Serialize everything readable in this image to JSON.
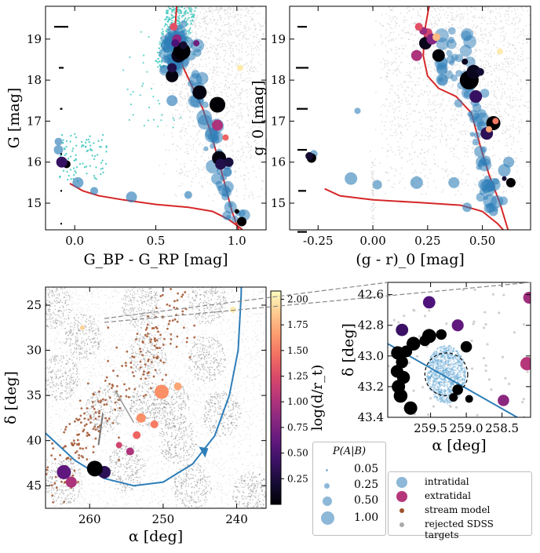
{
  "chart_data": [
    {
      "id": "gaia-cmd",
      "type": "scatter",
      "xlabel": "G_BP - G_RP [mag]",
      "ylabel": "G [mag]",
      "xlim": [
        -0.18,
        1.18
      ],
      "ylim": [
        19.8,
        14.35
      ],
      "xticks": [
        "0.0",
        "0.5",
        "1.0"
      ],
      "xtick_values": [
        0.0,
        0.5,
        1.0
      ],
      "yticks": [
        "15",
        "16",
        "17",
        "18",
        "19"
      ],
      "ytick_values": [
        15,
        16,
        17,
        18,
        19
      ],
      "error_bar_mags": [
        14.5,
        15.3,
        16.2,
        17.3,
        18.3,
        19.3
      ]
    },
    {
      "id": "sdss-cmd",
      "type": "scatter",
      "xlabel": "(g - r)_0 [mag]",
      "ylabel": "g_0 [mag]",
      "xlim": [
        -0.38,
        0.72
      ],
      "ylim": [
        19.8,
        14.35
      ],
      "xticks": [
        "-0.25",
        "0.00",
        "0.25",
        "0.50"
      ],
      "xtick_values": [
        -0.25,
        0.0,
        0.25,
        0.5
      ],
      "yticks": [
        "15",
        "16",
        "17",
        "18",
        "19"
      ],
      "ytick_values": [
        15,
        16,
        17,
        18,
        19
      ],
      "error_bar_mags": [
        14.3,
        15.3,
        16.3,
        17.3,
        18.3,
        19.3
      ]
    },
    {
      "id": "sky-map",
      "type": "scatter",
      "xlabel": "α [deg]",
      "ylabel": "δ [deg]",
      "xlim": [
        266,
        236
      ],
      "ylim": [
        23,
        47.5
      ],
      "xticks": [
        "260",
        "250",
        "240"
      ],
      "xtick_values": [
        260,
        250,
        240
      ],
      "yticks": [
        "25",
        "30",
        "35",
        "40",
        "45"
      ],
      "ytick_values": [
        25,
        30,
        35,
        40,
        45
      ]
    },
    {
      "id": "zoom-map",
      "type": "scatter",
      "xlabel": "α [deg]",
      "ylabel": "δ [deg]",
      "xlim": [
        260.1,
        258.1
      ],
      "ylim": [
        42.52,
        43.4
      ],
      "xticks": [
        "259.5",
        "259.0",
        "258.5"
      ],
      "xtick_values": [
        259.5,
        259.0,
        258.5
      ],
      "yticks": [
        "42.6",
        "42.8",
        "43.0",
        "43.2",
        "43.4"
      ],
      "ytick_values": [
        42.6,
        42.8,
        43.0,
        43.2,
        43.4
      ],
      "cluster_center": [
        259.28,
        43.12
      ],
      "members": [
        [
          259.78,
          43.34,
          0.9
        ],
        [
          259.92,
          43.26,
          0.95
        ],
        [
          259.95,
          43.2,
          0.9
        ],
        [
          259.88,
          43.14,
          0.85
        ],
        [
          259.97,
          43.1,
          0.8
        ],
        [
          259.9,
          43.04,
          0.75
        ],
        [
          259.96,
          42.98,
          0.9
        ],
        [
          259.74,
          42.92,
          0.95
        ],
        [
          259.52,
          42.87,
          1.0
        ],
        [
          259.58,
          42.9,
          0.6
        ],
        [
          259.12,
          43.22,
          0.55
        ],
        [
          259.18,
          43.27,
          0.3
        ],
        [
          259.0,
          42.94,
          0.65
        ],
        [
          259.35,
          42.86,
          0.55
        ],
        [
          259.84,
          42.97,
          0.7
        ],
        [
          258.96,
          43.28,
          0.2
        ]
      ],
      "extratidal": [
        [
          259.9,
          42.83,
          0.2,
          0.65
        ],
        [
          259.52,
          42.65,
          0.25,
          0.65
        ],
        [
          259.12,
          42.8,
          0.3,
          0.6
        ],
        [
          258.48,
          43.29,
          0.4,
          0.55
        ],
        [
          258.15,
          43.05,
          0.5,
          0.75
        ],
        [
          258.12,
          42.62,
          0.45,
          0.6
        ]
      ]
    }
  ],
  "colorbar": {
    "label": "log(d/r_t)",
    "range": [
      0.0,
      2.08
    ],
    "ticks": [
      "0.25",
      "0.50",
      "0.75",
      "1.00",
      "1.25",
      "1.50",
      "1.75",
      "2.00"
    ],
    "tick_values": [
      0.25,
      0.5,
      0.75,
      1.0,
      1.25,
      1.5,
      1.75,
      2.0
    ]
  },
  "size_legend": {
    "title": "P(A|B)",
    "entries": [
      "0.05",
      "0.25",
      "0.50",
      "1.00"
    ],
    "entry_values": [
      0.05,
      0.25,
      0.5,
      1.0
    ]
  },
  "legend": {
    "entries": [
      {
        "label": "intratidal",
        "color": "#8db8d8"
      },
      {
        "label": "extratidal",
        "color": "#b5367a"
      },
      {
        "label": "stream model",
        "color": "#a0522d"
      },
      {
        "label": "rejected SDSS targets",
        "color": "#a9a9a9"
      }
    ]
  },
  "colors": {
    "isochrone": "#d62728",
    "member": "#2e7eb8",
    "orbit": "#2e7eb8",
    "turquoise": "#40c8c0",
    "background": "#c8c8c8"
  }
}
